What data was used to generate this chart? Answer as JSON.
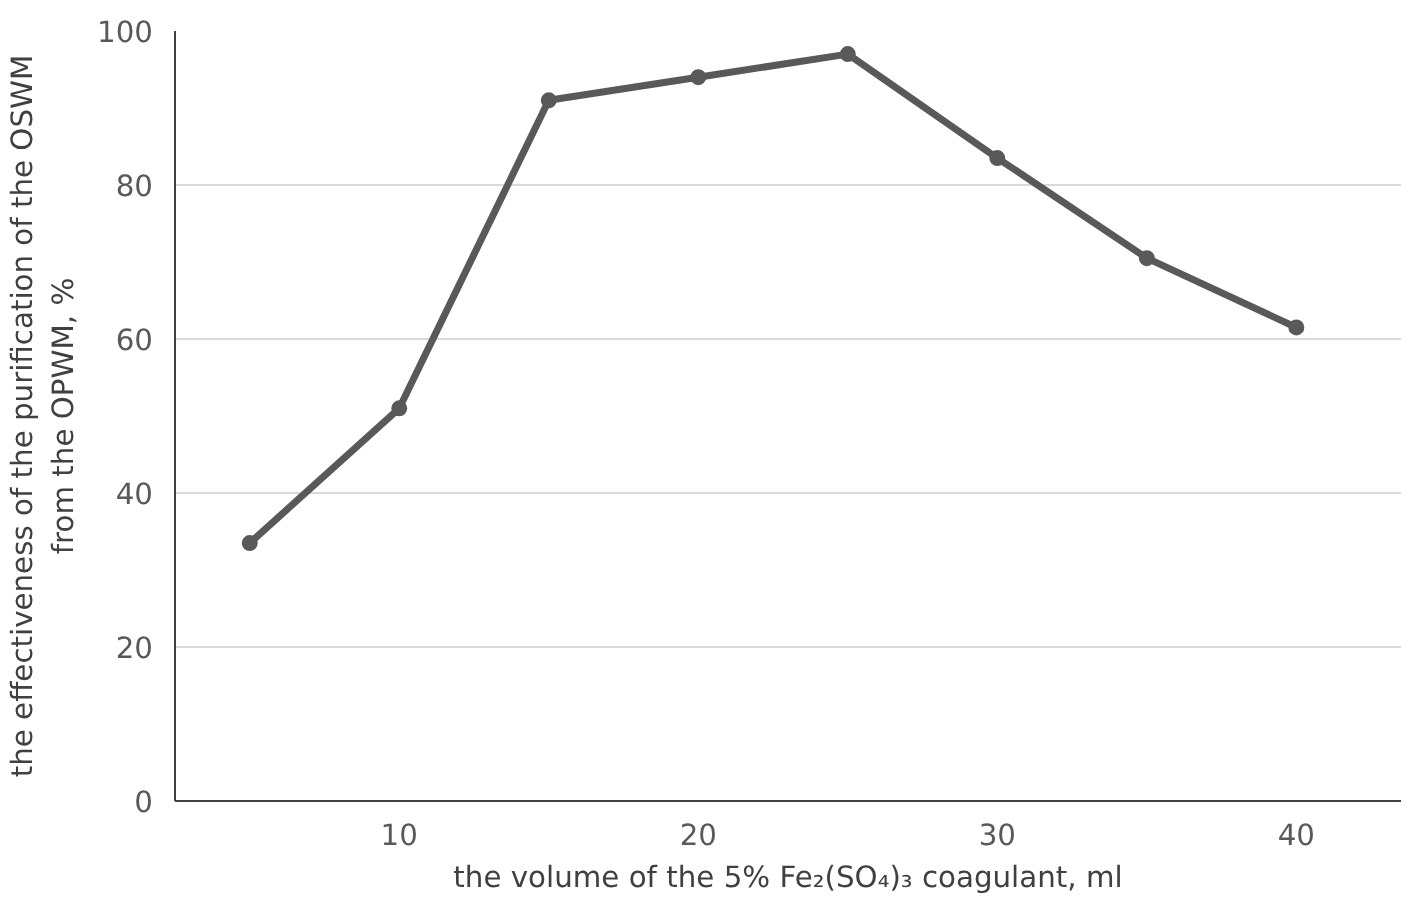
{
  "chart_data": {
    "type": "line",
    "xlabel": "the volume of the 5% Fe₂(SO₄)₃ coagulant, ml",
    "ylabel": "the effectiveness of the purification of the OSWM from the OPWM, %",
    "x": [
      5,
      10,
      15,
      20,
      25,
      30,
      35,
      40
    ],
    "series": [
      {
        "color": "#595959",
        "values": [
          33.5,
          51,
          91,
          94,
          97,
          83.5,
          70.5,
          61.5
        ]
      }
    ],
    "xlim": [
      2.5,
      43.5
    ],
    "xticks": [
      10,
      20,
      30,
      40
    ],
    "ylim": [
      0,
      100
    ],
    "yticks": [
      0,
      20,
      40,
      60,
      80,
      100
    ],
    "grid": "y",
    "marker": "circle",
    "line_style": "solid"
  }
}
